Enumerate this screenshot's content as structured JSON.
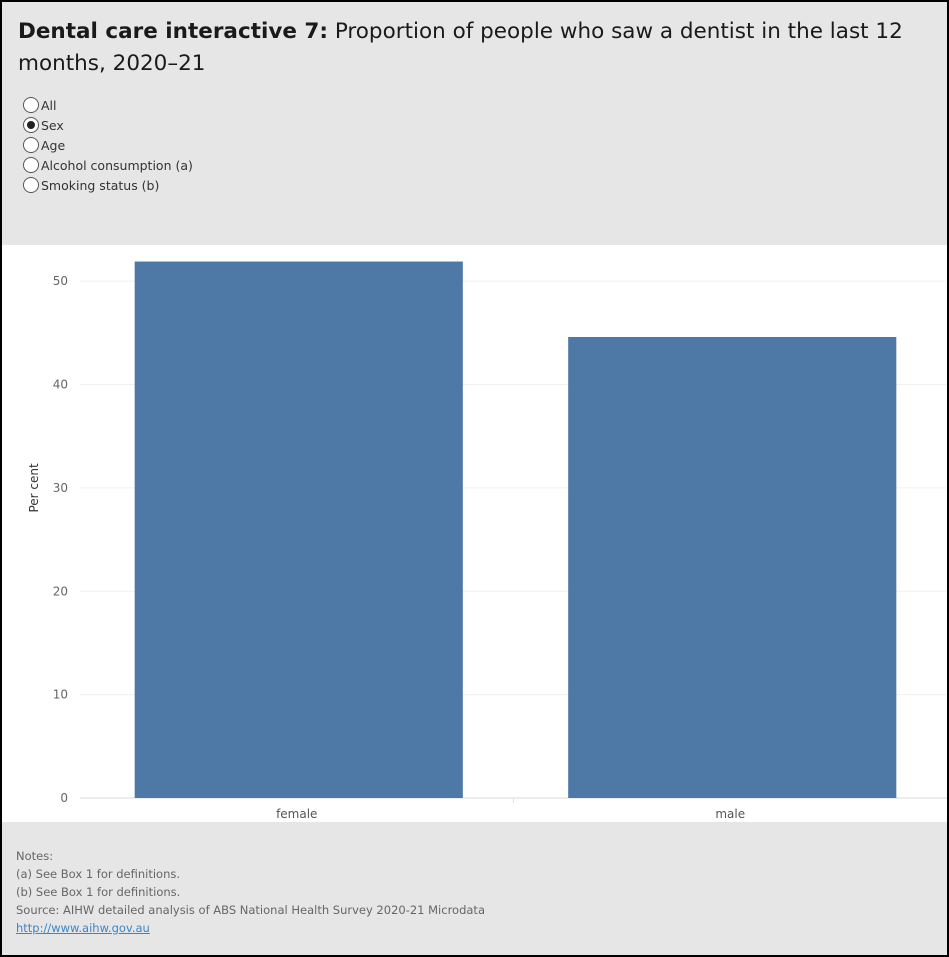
{
  "header": {
    "title_bold": "Dental care interactive 7:",
    "title_rest": "Proportion of people who saw a dentist in the last 12 months, 2020–21"
  },
  "filter": {
    "options": [
      "All",
      "Sex",
      "Age",
      "Alcohol consumption (a)",
      "Smoking status (b)"
    ],
    "selected": "Sex"
  },
  "chart_data": {
    "type": "bar",
    "categories": [
      "female",
      "male"
    ],
    "values": [
      51.9,
      44.6
    ],
    "ylabel": "Per cent",
    "xlabel": "",
    "ylim": [
      0,
      53.5
    ],
    "yticks": [
      0,
      10,
      20,
      30,
      40,
      50
    ],
    "grid": true,
    "bar_color": "#4e79a7"
  },
  "notes": {
    "heading": "Notes:",
    "lines": [
      "(a) See Box 1 for definitions.",
      "(b) See Box 1 for definitions."
    ],
    "source": "Source: AIHW detailed analysis of ABS National Health Survey 2020-21 Microdata",
    "link": "http://www.aihw.gov.au"
  },
  "colors": {
    "header_bg": "#e6e6e6",
    "link": "#3a86c9"
  }
}
